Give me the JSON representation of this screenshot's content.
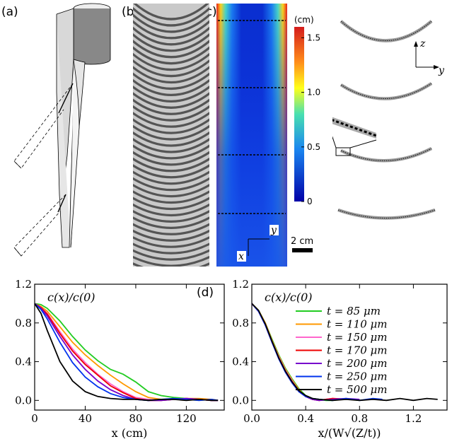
{
  "panels": {
    "a": "(a)",
    "b": "(b)",
    "c": "(c)",
    "d": "(d)"
  },
  "colorbar": {
    "unit": "(cm)",
    "ticks": [
      "1.5",
      "1.0",
      "0.5",
      "0"
    ],
    "tick_values": [
      1.5,
      1.0,
      0.5,
      0
    ],
    "colors": [
      "#d7191c",
      "#fdae61",
      "#ffff00",
      "#2ed3b7",
      "#2b83ba",
      "#0000b0"
    ]
  },
  "scalebar": {
    "label": "2 cm"
  },
  "axes_small": {
    "x": "x",
    "y": "y"
  },
  "axes_profiles": {
    "z": "z",
    "y": "y"
  },
  "chart_data": [
    {
      "type": "line",
      "ylabel": "c(x)/c(0)",
      "xlabel": "x (cm)",
      "xlim": [
        0,
        150
      ],
      "ylim": [
        -0.1,
        1.2
      ],
      "xticks": [
        0,
        40,
        80,
        120
      ],
      "yticks": [
        0.0,
        0.4,
        0.8,
        1.2
      ],
      "grid": false,
      "series": [
        {
          "name": "t = 85 μm",
          "color": "#22cc22",
          "x": [
            0,
            5,
            10,
            20,
            30,
            40,
            50,
            60,
            70,
            80,
            90,
            100,
            110,
            120,
            130,
            140,
            145
          ],
          "y": [
            1.0,
            0.99,
            0.95,
            0.82,
            0.66,
            0.52,
            0.41,
            0.32,
            0.27,
            0.19,
            0.09,
            0.05,
            0.03,
            0.02,
            0.01,
            0.0,
            0.0
          ]
        },
        {
          "name": "t = 110 μm",
          "color": "#ff9900",
          "x": [
            0,
            5,
            10,
            20,
            30,
            40,
            50,
            60,
            70,
            80,
            90,
            100,
            110,
            120,
            130,
            140,
            145
          ],
          "y": [
            1.0,
            0.97,
            0.92,
            0.76,
            0.6,
            0.47,
            0.36,
            0.26,
            0.17,
            0.09,
            0.03,
            0.01,
            0.01,
            0.02,
            0.02,
            0.01,
            0.0
          ]
        },
        {
          "name": "t = 150 μm",
          "color": "#ff66cc",
          "x": [
            0,
            5,
            10,
            20,
            30,
            40,
            50,
            60,
            70,
            80,
            90,
            100,
            110,
            120,
            130,
            140,
            145
          ],
          "y": [
            1.0,
            0.96,
            0.9,
            0.71,
            0.53,
            0.39,
            0.27,
            0.17,
            0.09,
            0.03,
            0.01,
            0.0,
            0.01,
            0.02,
            0.01,
            0.0,
            0.0
          ]
        },
        {
          "name": "t = 170 μm",
          "color": "#ee0000",
          "x": [
            0,
            5,
            10,
            20,
            30,
            40,
            50,
            60,
            70,
            80,
            90,
            100,
            110,
            120,
            130,
            140,
            145
          ],
          "y": [
            1.0,
            0.96,
            0.89,
            0.69,
            0.51,
            0.37,
            0.26,
            0.15,
            0.08,
            0.02,
            0.0,
            0.0,
            0.01,
            0.02,
            0.01,
            0.0,
            0.0
          ]
        },
        {
          "name": "t = 200 μm",
          "color": "#7700cc",
          "x": [
            0,
            5,
            10,
            20,
            30,
            40,
            50,
            60,
            70,
            80,
            90,
            100,
            110,
            120,
            130,
            140,
            145
          ],
          "y": [
            1.0,
            0.95,
            0.87,
            0.66,
            0.47,
            0.32,
            0.2,
            0.11,
            0.05,
            0.01,
            0.0,
            0.0,
            0.01,
            0.02,
            0.01,
            0.0,
            0.0
          ]
        },
        {
          "name": "t = 250 μm",
          "color": "#0033ee",
          "x": [
            0,
            5,
            10,
            20,
            30,
            40,
            50,
            60,
            70,
            80,
            90,
            100,
            110,
            120,
            130,
            140,
            145
          ],
          "y": [
            1.0,
            0.94,
            0.84,
            0.6,
            0.39,
            0.24,
            0.14,
            0.07,
            0.03,
            0.01,
            0.0,
            0.01,
            0.02,
            0.01,
            0.0,
            0.01,
            0.0
          ]
        },
        {
          "name": "t = 500 μm",
          "color": "#000000",
          "x": [
            0,
            5,
            10,
            20,
            30,
            40,
            50,
            60,
            70,
            80,
            90,
            100,
            110,
            120,
            130,
            140,
            145
          ],
          "y": [
            1.0,
            0.9,
            0.72,
            0.4,
            0.2,
            0.09,
            0.04,
            0.02,
            0.01,
            0.01,
            0.0,
            0.01,
            0.01,
            0.0,
            0.01,
            0.0,
            0.0
          ]
        }
      ]
    },
    {
      "type": "line",
      "ylabel": "c(x)/c(0)",
      "xlabel": "x/(W√(Z/t))",
      "xlim": [
        0,
        1.45
      ],
      "ylim": [
        -0.1,
        1.2
      ],
      "xticks": [
        0.0,
        0.4,
        0.8,
        1.2
      ],
      "yticks": [
        0.0,
        0.4,
        0.8,
        1.2
      ],
      "grid": false,
      "series": [
        {
          "color": "#22cc22",
          "x": [
            0,
            0.05,
            0.1,
            0.15,
            0.2,
            0.25,
            0.3,
            0.35,
            0.4,
            0.45,
            0.5,
            0.55,
            0.6
          ],
          "y": [
            1.0,
            0.93,
            0.8,
            0.63,
            0.47,
            0.33,
            0.22,
            0.12,
            0.05,
            0.02,
            0.01,
            0.0,
            0.0
          ]
        },
        {
          "color": "#ff9900",
          "x": [
            0,
            0.05,
            0.1,
            0.15,
            0.2,
            0.25,
            0.3,
            0.35,
            0.4,
            0.45,
            0.5,
            0.55,
            0.6,
            0.65
          ],
          "y": [
            1.0,
            0.93,
            0.8,
            0.62,
            0.46,
            0.32,
            0.21,
            0.11,
            0.04,
            0.01,
            0.0,
            0.01,
            0.02,
            0.01
          ]
        },
        {
          "color": "#ff66cc",
          "x": [
            0,
            0.05,
            0.1,
            0.15,
            0.2,
            0.25,
            0.3,
            0.35,
            0.4,
            0.45,
            0.5,
            0.55,
            0.6,
            0.7
          ],
          "y": [
            1.0,
            0.92,
            0.79,
            0.61,
            0.45,
            0.31,
            0.2,
            0.1,
            0.04,
            0.01,
            0.0,
            0.01,
            0.02,
            0.01
          ]
        },
        {
          "color": "#ee0000",
          "x": [
            0,
            0.05,
            0.1,
            0.15,
            0.2,
            0.25,
            0.3,
            0.35,
            0.4,
            0.45,
            0.5,
            0.55,
            0.6,
            0.75
          ],
          "y": [
            1.0,
            0.92,
            0.78,
            0.6,
            0.44,
            0.3,
            0.19,
            0.1,
            0.04,
            0.01,
            0.0,
            0.01,
            0.02,
            0.01
          ]
        },
        {
          "color": "#7700cc",
          "x": [
            0,
            0.05,
            0.1,
            0.15,
            0.2,
            0.25,
            0.3,
            0.35,
            0.4,
            0.45,
            0.5,
            0.6,
            0.7,
            0.8
          ],
          "y": [
            1.0,
            0.92,
            0.78,
            0.6,
            0.43,
            0.29,
            0.18,
            0.09,
            0.04,
            0.01,
            0.0,
            0.01,
            0.02,
            0.01
          ]
        },
        {
          "color": "#0033ee",
          "x": [
            0,
            0.05,
            0.1,
            0.15,
            0.2,
            0.25,
            0.3,
            0.35,
            0.4,
            0.45,
            0.5,
            0.6,
            0.7,
            0.8,
            0.9,
            0.97
          ],
          "y": [
            1.0,
            0.92,
            0.78,
            0.6,
            0.43,
            0.29,
            0.18,
            0.09,
            0.04,
            0.02,
            0.01,
            0.0,
            0.02,
            0.0,
            0.02,
            0.01
          ]
        },
        {
          "color": "#000000",
          "x": [
            0,
            0.05,
            0.1,
            0.15,
            0.2,
            0.25,
            0.3,
            0.35,
            0.4,
            0.45,
            0.5,
            0.6,
            0.7,
            0.8,
            0.9,
            1.0,
            1.1,
            1.2,
            1.3,
            1.38
          ],
          "y": [
            1.0,
            0.93,
            0.79,
            0.61,
            0.44,
            0.3,
            0.19,
            0.1,
            0.05,
            0.02,
            0.01,
            0.0,
            0.01,
            0.0,
            0.01,
            0.0,
            0.02,
            0.0,
            0.02,
            0.01
          ]
        }
      ]
    }
  ],
  "legend": [
    "t = 85 μm",
    "t = 110 μm",
    "t = 150 μm",
    "t = 170 μm",
    "t = 200 μm",
    "t = 250 μm",
    "t = 500 μm"
  ]
}
